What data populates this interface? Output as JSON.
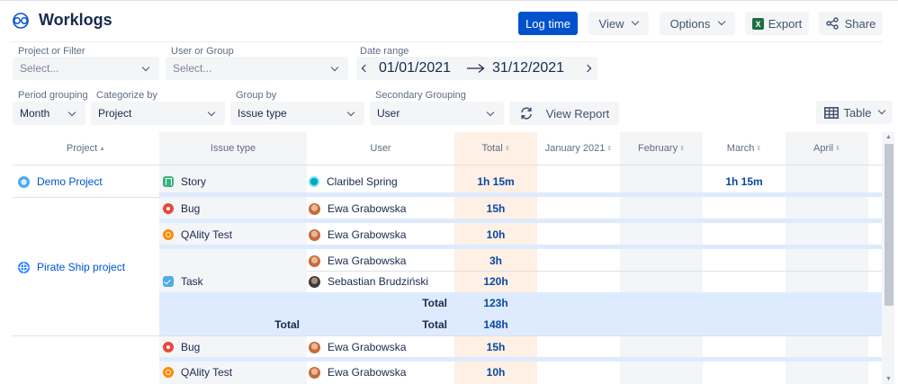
{
  "app": {
    "title": "Worklogs"
  },
  "header": {
    "log_time": "Log time",
    "view": "View",
    "options": "Options",
    "export": "Export",
    "share": "Share"
  },
  "filters": {
    "project_label": "Project or Filter",
    "project_placeholder": "Select...",
    "user_label": "User or Group",
    "user_placeholder": "Select...",
    "date_label": "Date range",
    "date_from": "01/01/2021",
    "date_to": "31/12/2021",
    "period_label": "Period grouping",
    "period_value": "Month",
    "categorize_label": "Categorize by",
    "categorize_value": "Project",
    "groupby_label": "Group by",
    "groupby_value": "Issue type",
    "secondary_label": "Secondary Grouping",
    "secondary_value": "User",
    "view_report": "View Report",
    "table_view": "Table"
  },
  "table": {
    "columns": [
      "Project",
      "Issue type",
      "User",
      "Total",
      "January 2021",
      "February",
      "March",
      "April"
    ],
    "projects": [
      "Demo Project",
      "Pirate Ship project"
    ],
    "rows": [
      {
        "issue_type": "Story",
        "user": "Claribel Spring",
        "total": "1h 15m",
        "march": "1h 15m"
      },
      {
        "issue_type": "Bug",
        "user": "Ewa Grabowska",
        "total": "15h"
      },
      {
        "issue_type": "QAlity Test",
        "user": "Ewa Grabowska",
        "total": "10h"
      },
      {
        "issue_type": "",
        "user": "Ewa Grabowska",
        "total": "3h"
      },
      {
        "issue_type": "Task",
        "user": "Sebastian Brudziński",
        "total": "120h"
      },
      {
        "issue_type": "Bug",
        "user": "Ewa Grabowska",
        "total": "15h"
      },
      {
        "issue_type": "QAlity Test",
        "user": "Ewa Grabowska",
        "total": "10h"
      }
    ],
    "task_total_label": "Total",
    "task_total_value": "123h",
    "project_total_label": "Total",
    "project_total_value": "148h"
  },
  "colors": {
    "accent": "#0052cc",
    "total_column": "#fef0e4",
    "subtotal_band": "#deebff",
    "story": "#36b37e",
    "bug": "#e5493a",
    "qa": "#ff8b00",
    "task": "#4bade8"
  }
}
